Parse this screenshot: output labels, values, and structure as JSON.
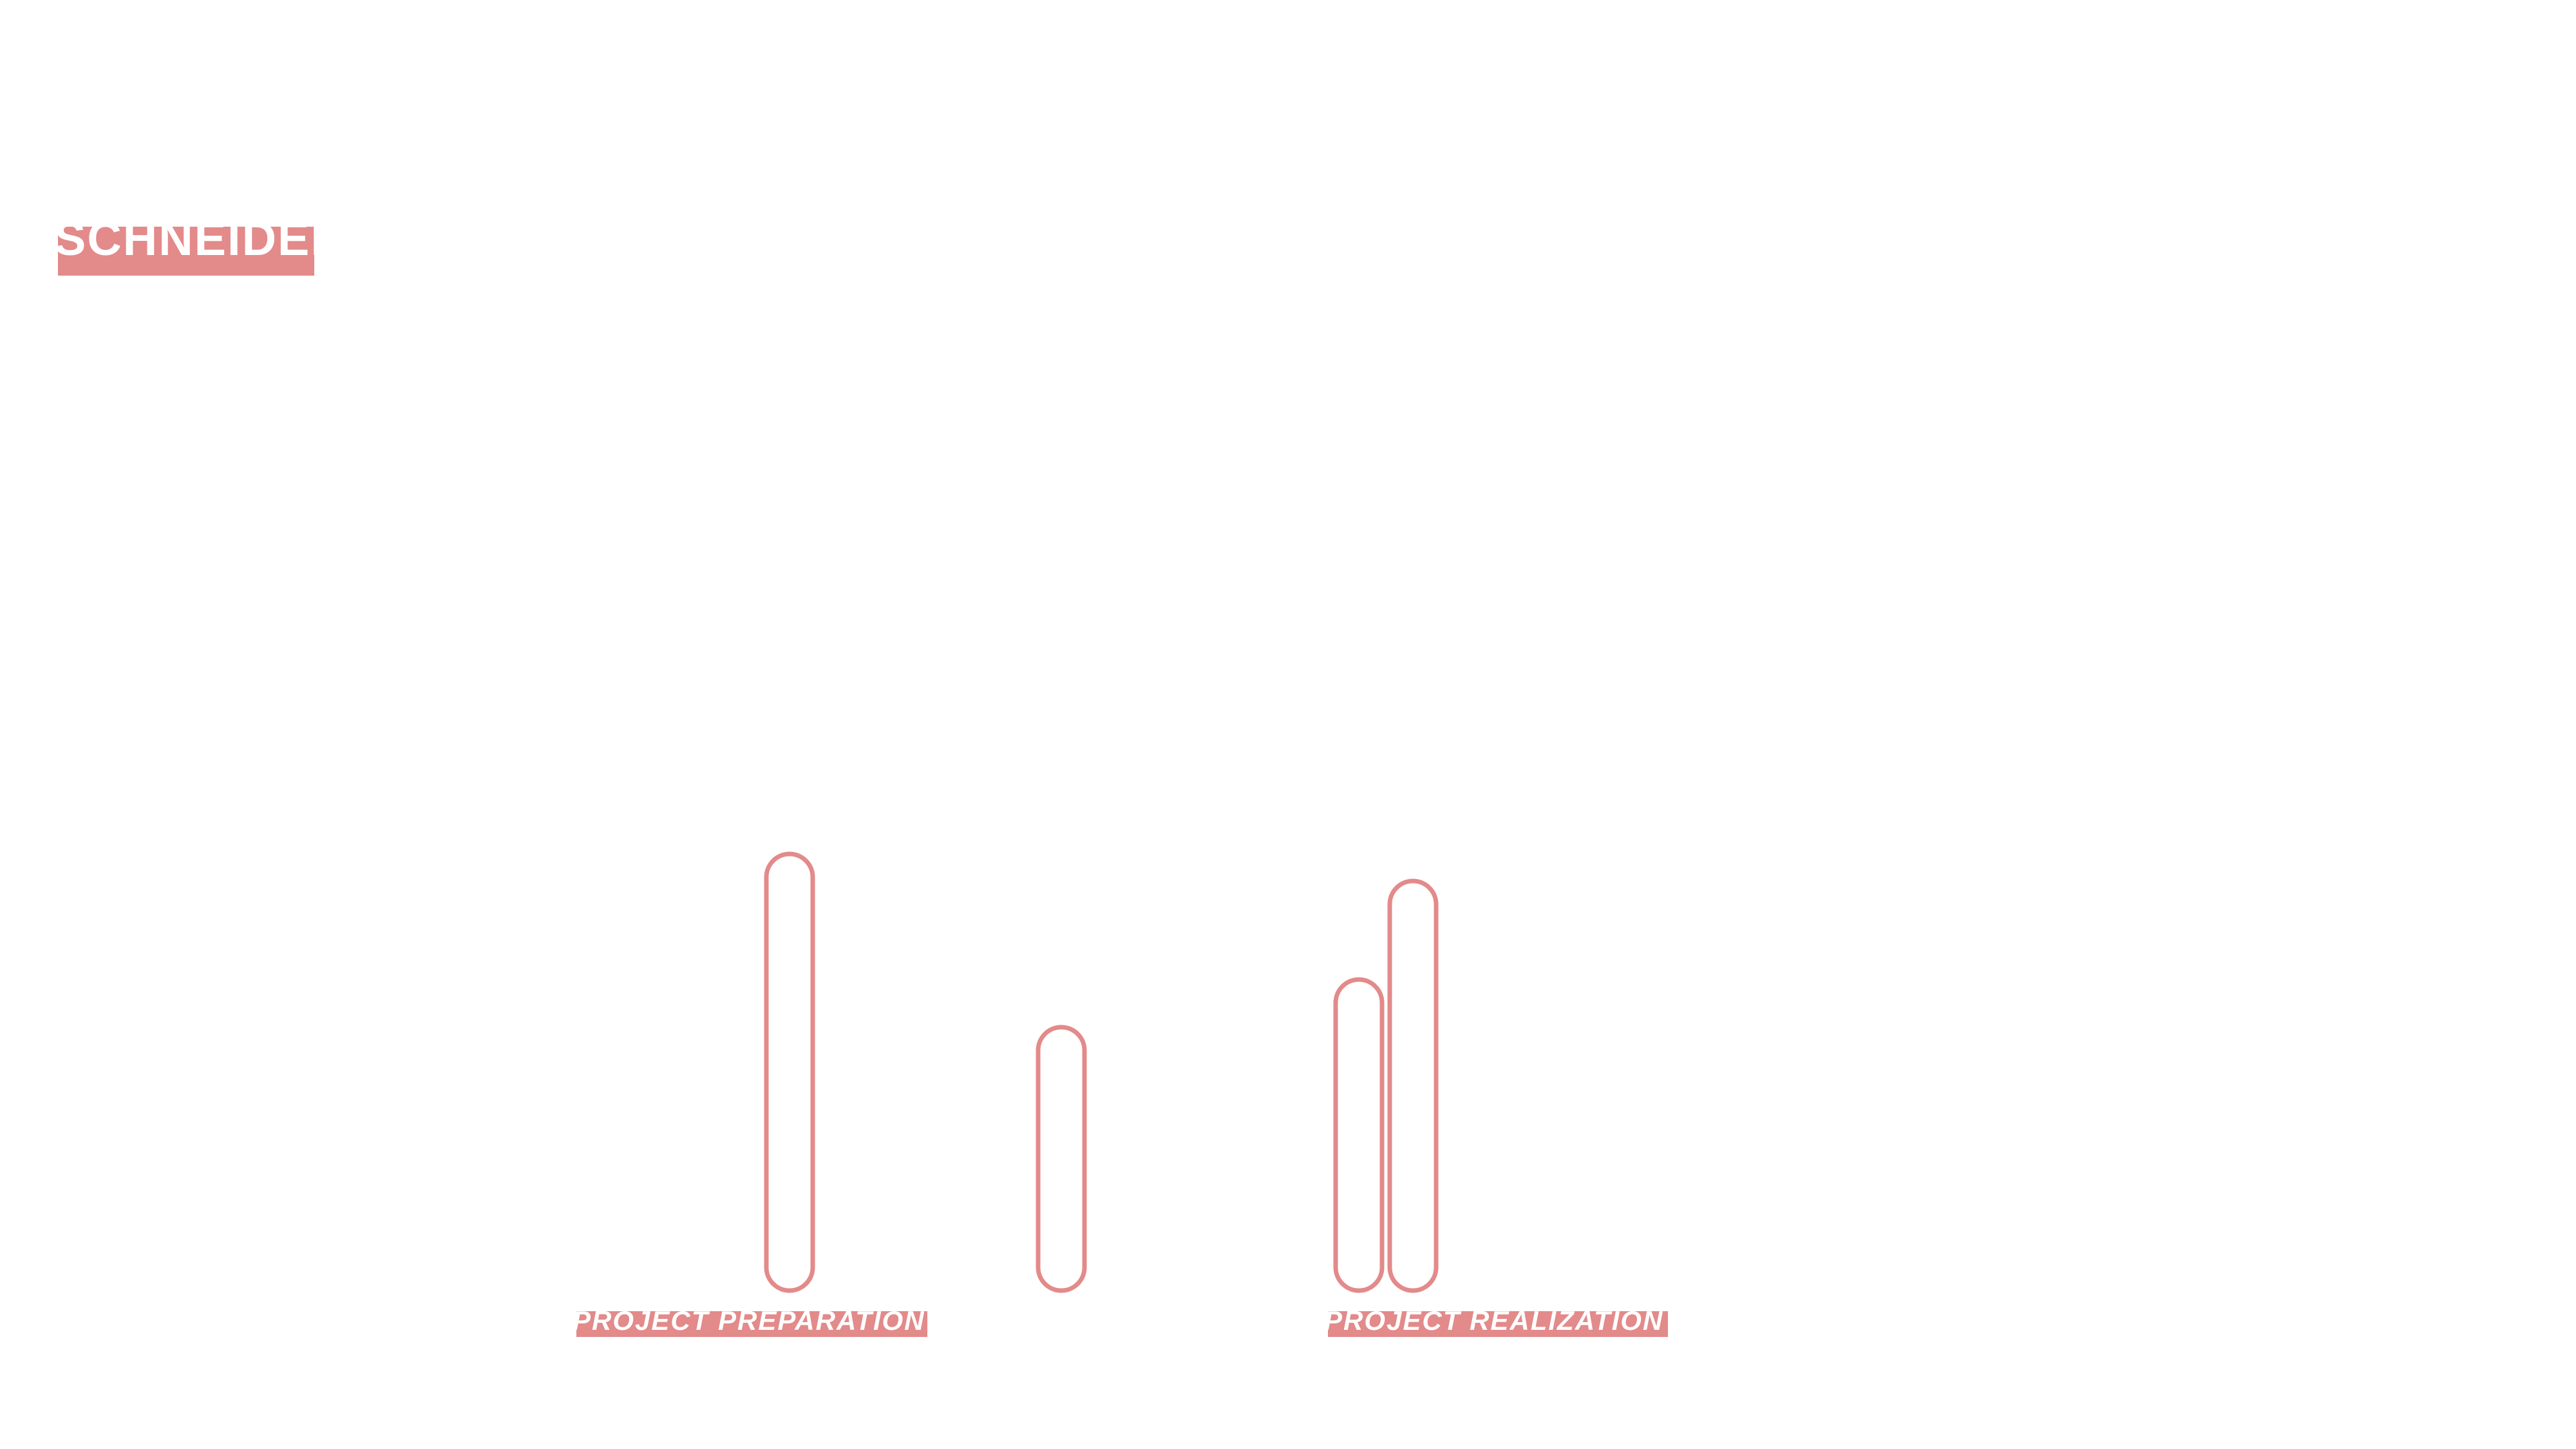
{
  "brand": {
    "name": "SCHNEIDER",
    "color": "#e38a8a"
  },
  "labels": {
    "project_preparation": "PROJECT PREPARATION",
    "project_realization": "PROJECT REALIZATION"
  }
}
